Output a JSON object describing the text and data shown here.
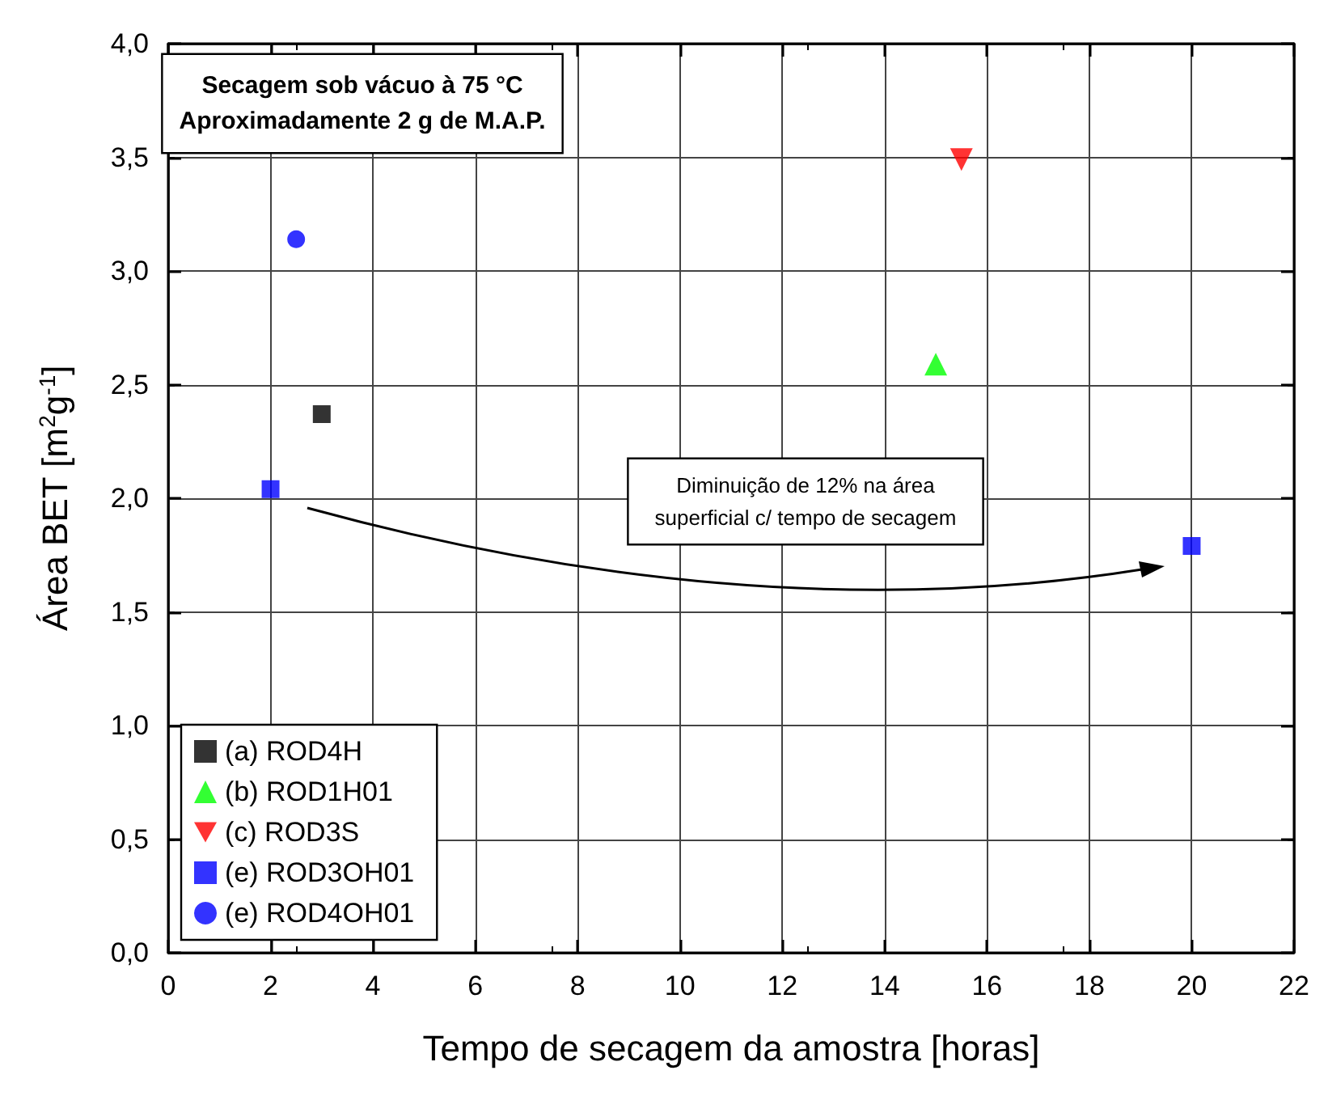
{
  "chart_data": {
    "type": "scatter",
    "xlabel": "Tempo de secagem da amostra [horas]",
    "ylabel": "Área BET [m$^{2}$g$^{-1}$]",
    "annotations": [
      "Secagem sob vácuo à 75 °C\nAproximadamente 2 g de M.A.P.",
      "Diminuição de 12% na área\nsuperficial c/ tempo de secagem"
    ],
    "series": [
      {
        "name": "(a) ROD4H",
        "color": "#000000",
        "marker": "square",
        "x": [
          3
        ],
        "values": [
          2.37
        ]
      },
      {
        "name": "(b) ROD1H01",
        "color": "#00ff00",
        "marker": "triangle",
        "x": [
          15
        ],
        "values": [
          2.59
        ]
      },
      {
        "name": "(c) ROD3S",
        "color": "#ff0000",
        "marker": "triangle-down",
        "x": [
          15.5
        ],
        "values": [
          3.49
        ]
      },
      {
        "name": "(e) ROD3OH01",
        "color": "#0000ff",
        "marker": "square",
        "x": [
          2,
          20
        ],
        "values": [
          2.04,
          1.79
        ]
      },
      {
        "name": "(e) ROD4OH01",
        "color": "#0000ff",
        "marker": "circle",
        "x": [
          2.5
        ],
        "values": [
          3.14
        ]
      }
    ],
    "xlim": [
      0,
      22
    ],
    "xticks": [
      0,
      2,
      4,
      6,
      8,
      10,
      12,
      14,
      16,
      18,
      20,
      22
    ],
    "ylim": [
      0,
      4
    ],
    "yticks": [
      {
        "value": 0,
        "label": "0,0"
      },
      {
        "value": 0.5,
        "label": "0,5"
      },
      {
        "value": 1,
        "label": "1,0"
      },
      {
        "value": 1.5,
        "label": "1,5"
      },
      {
        "value": 2,
        "label": "2,0"
      },
      {
        "value": 2.5,
        "label": "2,5"
      },
      {
        "value": 3,
        "label": "3,0"
      },
      {
        "value": 3.5,
        "label": "3,5"
      },
      {
        "value": 4,
        "label": "4,0"
      }
    ],
    "grid": true,
    "legend": "bottom left"
  }
}
